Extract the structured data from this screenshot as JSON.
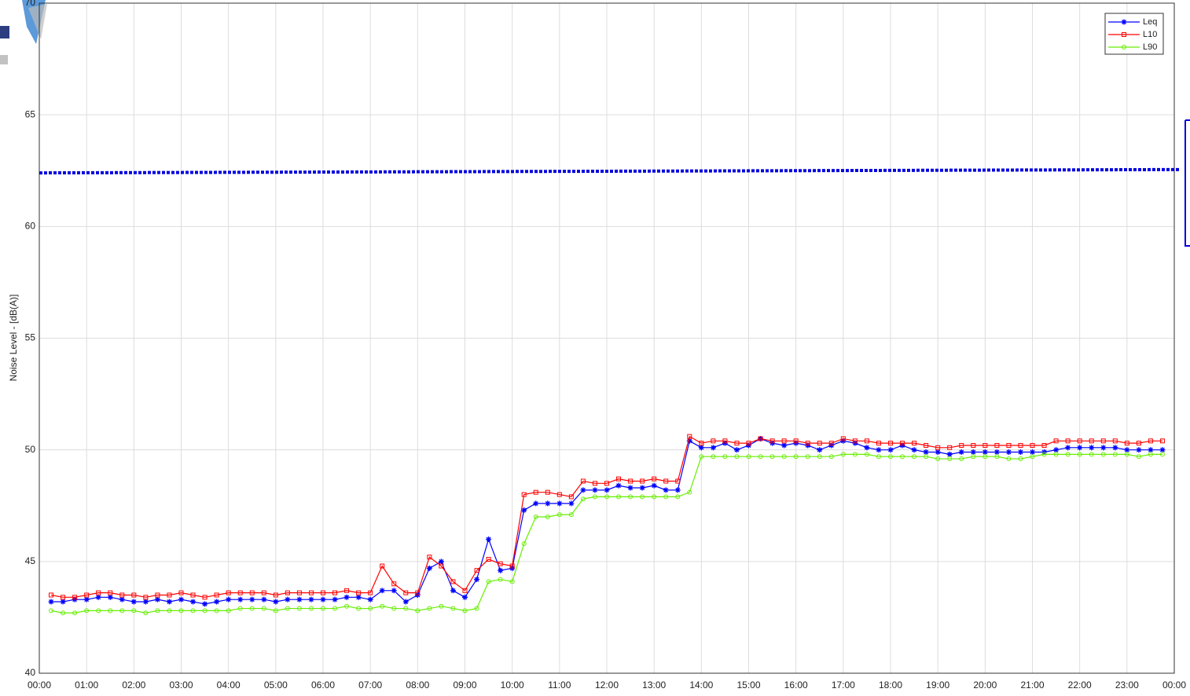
{
  "chart_data": {
    "type": "line",
    "ylabel": "Noise Level - [dB(A)]",
    "xlim": [
      0,
      24
    ],
    "xticks": [
      {
        "value": 0,
        "label": "00:00"
      },
      {
        "value": 1,
        "label": "01:00"
      },
      {
        "value": 2,
        "label": "02:00"
      },
      {
        "value": 3,
        "label": "03:00"
      },
      {
        "value": 4,
        "label": "04:00"
      },
      {
        "value": 5,
        "label": "05:00"
      },
      {
        "value": 6,
        "label": "06:00"
      },
      {
        "value": 7,
        "label": "07:00"
      },
      {
        "value": 8,
        "label": "08:00"
      },
      {
        "value": 9,
        "label": "09:00"
      },
      {
        "value": 10,
        "label": "10:00"
      },
      {
        "value": 11,
        "label": "11:00"
      },
      {
        "value": 12,
        "label": "12:00"
      },
      {
        "value": 13,
        "label": "13:00"
      },
      {
        "value": 14,
        "label": "14:00"
      },
      {
        "value": 15,
        "label": "15:00"
      },
      {
        "value": 16,
        "label": "16:00"
      },
      {
        "value": 17,
        "label": "17:00"
      },
      {
        "value": 18,
        "label": "18:00"
      },
      {
        "value": 19,
        "label": "19:00"
      },
      {
        "value": 20,
        "label": "20:00"
      },
      {
        "value": 21,
        "label": "21:00"
      },
      {
        "value": 22,
        "label": "22:00"
      },
      {
        "value": 23,
        "label": "23:00"
      },
      {
        "value": 24,
        "label": "00:00"
      }
    ],
    "ylim": [
      40,
      70
    ],
    "yticks": [
      40,
      45,
      50,
      55,
      60,
      65,
      70
    ],
    "grid": true,
    "legend": "upper right",
    "x": [
      0.25,
      0.5,
      0.75,
      1,
      1.25,
      1.5,
      1.75,
      2,
      2.25,
      2.5,
      2.75,
      3,
      3.25,
      3.5,
      3.75,
      4,
      4.25,
      4.5,
      4.75,
      5,
      5.25,
      5.5,
      5.75,
      6,
      6.25,
      6.5,
      6.75,
      7,
      7.25,
      7.5,
      7.75,
      8,
      8.25,
      8.5,
      8.75,
      9,
      9.25,
      9.5,
      9.75,
      10,
      10.25,
      10.5,
      10.75,
      11,
      11.25,
      11.5,
      11.75,
      12,
      12.25,
      12.5,
      12.75,
      13,
      13.25,
      13.5,
      13.75,
      14,
      14.25,
      14.5,
      14.75,
      15,
      15.25,
      15.5,
      15.75,
      16,
      16.25,
      16.5,
      16.75,
      17,
      17.25,
      17.5,
      17.75,
      18,
      18.25,
      18.5,
      18.75,
      19,
      19.25,
      19.5,
      19.75,
      20,
      20.25,
      20.5,
      20.75,
      21,
      21.25,
      21.5,
      21.75,
      22,
      22.25,
      22.5,
      22.75,
      23,
      23.25,
      23.5,
      23.75
    ],
    "series": [
      {
        "name": "Leq",
        "color": "#0000ff",
        "marker": "star",
        "values": [
          43.2,
          43.2,
          43.3,
          43.3,
          43.4,
          43.4,
          43.3,
          43.2,
          43.2,
          43.3,
          43.2,
          43.3,
          43.2,
          43.1,
          43.2,
          43.3,
          43.3,
          43.3,
          43.3,
          43.2,
          43.3,
          43.3,
          43.3,
          43.3,
          43.3,
          43.4,
          43.4,
          43.3,
          43.7,
          43.7,
          43.2,
          43.5,
          44.7,
          45.0,
          43.7,
          43.4,
          44.2,
          46.0,
          44.6,
          44.7,
          47.3,
          47.6,
          47.6,
          47.6,
          47.6,
          48.2,
          48.2,
          48.2,
          48.4,
          48.3,
          48.3,
          48.4,
          48.2,
          48.2,
          50.4,
          50.1,
          50.1,
          50.3,
          50.0,
          50.2,
          50.5,
          50.3,
          50.2,
          50.3,
          50.2,
          50.0,
          50.2,
          50.4,
          50.3,
          50.1,
          50.0,
          50.0,
          50.2,
          50.0,
          49.9,
          49.9,
          49.8,
          49.9,
          49.9,
          49.9,
          49.9,
          49.9,
          49.9,
          49.9,
          49.9,
          50.0,
          50.1,
          50.1,
          50.1,
          50.1,
          50.1,
          50.0,
          50.0,
          50.0,
          50.0
        ]
      },
      {
        "name": "L10",
        "color": "#ff0000",
        "marker": "square",
        "values": [
          43.5,
          43.4,
          43.4,
          43.5,
          43.6,
          43.6,
          43.5,
          43.5,
          43.4,
          43.5,
          43.5,
          43.6,
          43.5,
          43.4,
          43.5,
          43.6,
          43.6,
          43.6,
          43.6,
          43.5,
          43.6,
          43.6,
          43.6,
          43.6,
          43.6,
          43.7,
          43.6,
          43.6,
          44.8,
          44.0,
          43.6,
          43.6,
          45.2,
          44.8,
          44.1,
          43.7,
          44.6,
          45.1,
          44.9,
          44.8,
          48.0,
          48.1,
          48.1,
          48.0,
          47.9,
          48.6,
          48.5,
          48.5,
          48.7,
          48.6,
          48.6,
          48.7,
          48.6,
          48.6,
          50.6,
          50.3,
          50.4,
          50.4,
          50.3,
          50.3,
          50.5,
          50.4,
          50.4,
          50.4,
          50.3,
          50.3,
          50.3,
          50.5,
          50.4,
          50.4,
          50.3,
          50.3,
          50.3,
          50.3,
          50.2,
          50.1,
          50.1,
          50.2,
          50.2,
          50.2,
          50.2,
          50.2,
          50.2,
          50.2,
          50.2,
          50.4,
          50.4,
          50.4,
          50.4,
          50.4,
          50.4,
          50.3,
          50.3,
          50.4,
          50.4
        ]
      },
      {
        "name": "L90",
        "color": "#66ee00",
        "marker": "circle",
        "values": [
          42.8,
          42.7,
          42.7,
          42.8,
          42.8,
          42.8,
          42.8,
          42.8,
          42.7,
          42.8,
          42.8,
          42.8,
          42.8,
          42.8,
          42.8,
          42.8,
          42.9,
          42.9,
          42.9,
          42.8,
          42.9,
          42.9,
          42.9,
          42.9,
          42.9,
          43.0,
          42.9,
          42.9,
          43.0,
          42.9,
          42.9,
          42.8,
          42.9,
          43.0,
          42.9,
          42.8,
          42.9,
          44.1,
          44.2,
          44.1,
          45.8,
          47.0,
          47.0,
          47.1,
          47.1,
          47.8,
          47.9,
          47.9,
          47.9,
          47.9,
          47.9,
          47.9,
          47.9,
          47.9,
          48.1,
          49.7,
          49.7,
          49.7,
          49.7,
          49.7,
          49.7,
          49.7,
          49.7,
          49.7,
          49.7,
          49.7,
          49.7,
          49.8,
          49.8,
          49.8,
          49.7,
          49.7,
          49.7,
          49.7,
          49.7,
          49.6,
          49.6,
          49.6,
          49.7,
          49.7,
          49.7,
          49.6,
          49.6,
          49.7,
          49.8,
          49.8,
          49.8,
          49.8,
          49.8,
          49.8,
          49.8,
          49.8,
          49.7,
          49.8,
          49.8
        ]
      }
    ],
    "reference_line": {
      "color": "#0000dd",
      "values": [
        62.4,
        62.55
      ]
    }
  }
}
